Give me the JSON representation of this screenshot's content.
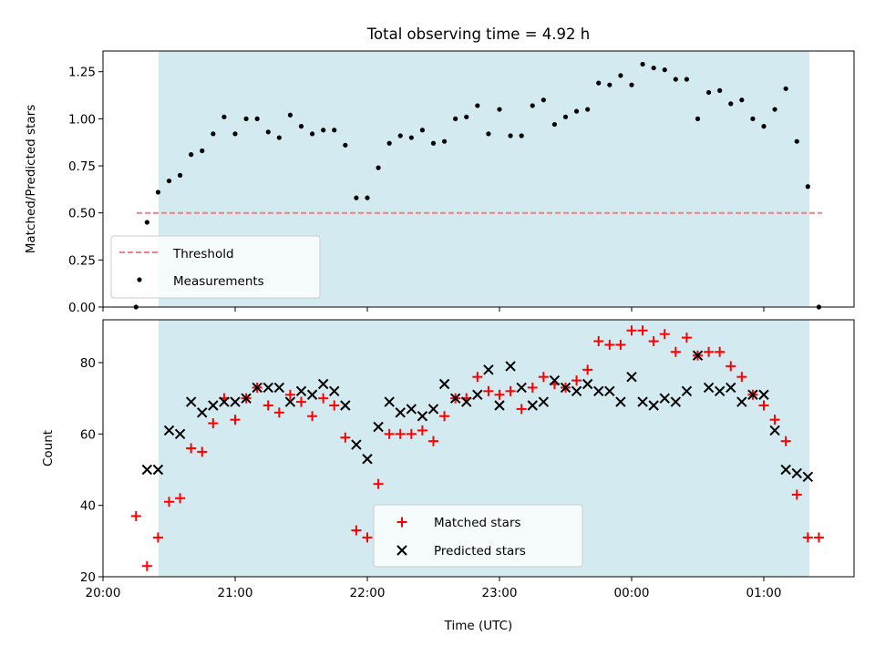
{
  "title": "Total observing time = 4.92 h",
  "colors": {
    "observing_span": "#d3eaf1",
    "threshold": "#f28080",
    "measurements": "#000000",
    "matched": "#ff0000",
    "predicted": "#000000"
  },
  "chart_data": [
    {
      "type": "scatter",
      "ylabel": "Matched/Predicted stars",
      "ylim": [
        0,
        1.36
      ],
      "yticks": [
        "0.00",
        "0.25",
        "0.50",
        "0.75",
        "1.00",
        "1.25"
      ],
      "threshold": 0.5,
      "legend": {
        "placement": "lower-left",
        "entries": [
          "Threshold",
          "Measurements"
        ]
      },
      "series": [
        {
          "name": "Measurements",
          "points": [
            [
              "20:15",
              0.0
            ],
            [
              "20:20",
              0.45
            ],
            [
              "20:25",
              0.61
            ],
            [
              "20:30",
              0.67
            ],
            [
              "20:35",
              0.7
            ],
            [
              "20:40",
              0.81
            ],
            [
              "20:45",
              0.83
            ],
            [
              "20:50",
              0.92
            ],
            [
              "20:55",
              1.01
            ],
            [
              "21:00",
              0.92
            ],
            [
              "21:05",
              1.0
            ],
            [
              "21:10",
              1.0
            ],
            [
              "21:15",
              0.93
            ],
            [
              "21:20",
              0.9
            ],
            [
              "21:25",
              1.02
            ],
            [
              "21:30",
              0.96
            ],
            [
              "21:35",
              0.92
            ],
            [
              "21:40",
              0.94
            ],
            [
              "21:45",
              0.94
            ],
            [
              "21:50",
              0.86
            ],
            [
              "21:55",
              0.58
            ],
            [
              "22:00",
              0.58
            ],
            [
              "22:05",
              0.74
            ],
            [
              "22:10",
              0.87
            ],
            [
              "22:15",
              0.91
            ],
            [
              "22:20",
              0.9
            ],
            [
              "22:25",
              0.94
            ],
            [
              "22:30",
              0.87
            ],
            [
              "22:35",
              0.88
            ],
            [
              "22:40",
              1.0
            ],
            [
              "22:45",
              1.01
            ],
            [
              "22:50",
              1.07
            ],
            [
              "22:55",
              0.92
            ],
            [
              "23:00",
              1.05
            ],
            [
              "23:05",
              0.91
            ],
            [
              "23:10",
              0.91
            ],
            [
              "23:15",
              1.07
            ],
            [
              "23:20",
              1.1
            ],
            [
              "23:25",
              0.97
            ],
            [
              "23:30",
              1.01
            ],
            [
              "23:35",
              1.04
            ],
            [
              "23:40",
              1.05
            ],
            [
              "23:45",
              1.19
            ],
            [
              "23:50",
              1.18
            ],
            [
              "23:55",
              1.23
            ],
            [
              "00:00",
              1.18
            ],
            [
              "00:05",
              1.29
            ],
            [
              "00:10",
              1.27
            ],
            [
              "00:15",
              1.26
            ],
            [
              "00:20",
              1.21
            ],
            [
              "00:25",
              1.21
            ],
            [
              "00:30",
              1.0
            ],
            [
              "00:35",
              1.14
            ],
            [
              "00:40",
              1.15
            ],
            [
              "00:45",
              1.08
            ],
            [
              "00:50",
              1.1
            ],
            [
              "00:55",
              1.0
            ],
            [
              "01:00",
              0.96
            ],
            [
              "01:05",
              1.05
            ],
            [
              "01:10",
              1.16
            ],
            [
              "01:15",
              0.88
            ],
            [
              "01:20",
              0.64
            ],
            [
              "01:25",
              0.0
            ]
          ]
        }
      ]
    },
    {
      "type": "scatter",
      "ylabel": "Count",
      "xlabel": "Time (UTC)",
      "ylim": [
        20,
        92
      ],
      "yticks": [
        "20",
        "40",
        "60",
        "80"
      ],
      "xticks": [
        "20:00",
        "21:00",
        "22:00",
        "23:00",
        "00:00",
        "01:00"
      ],
      "legend": {
        "placement": "lower-center",
        "entries": [
          "Matched stars",
          "Predicted stars"
        ]
      },
      "series": [
        {
          "name": "Matched stars",
          "points": [
            [
              "20:15",
              37
            ],
            [
              "20:20",
              23
            ],
            [
              "20:25",
              31
            ],
            [
              "20:30",
              41
            ],
            [
              "20:35",
              42
            ],
            [
              "20:40",
              56
            ],
            [
              "20:45",
              55
            ],
            [
              "20:50",
              63
            ],
            [
              "20:55",
              70
            ],
            [
              "21:00",
              64
            ],
            [
              "21:05",
              70
            ],
            [
              "21:10",
              73
            ],
            [
              "21:15",
              68
            ],
            [
              "21:20",
              66
            ],
            [
              "21:25",
              71
            ],
            [
              "21:30",
              69
            ],
            [
              "21:35",
              65
            ],
            [
              "21:40",
              70
            ],
            [
              "21:45",
              68
            ],
            [
              "21:50",
              59
            ],
            [
              "21:55",
              33
            ],
            [
              "22:00",
              31
            ],
            [
              "22:05",
              46
            ],
            [
              "22:10",
              60
            ],
            [
              "22:15",
              60
            ],
            [
              "22:20",
              60
            ],
            [
              "22:25",
              61
            ],
            [
              "22:30",
              58
            ],
            [
              "22:35",
              65
            ],
            [
              "22:40",
              70
            ],
            [
              "22:45",
              70
            ],
            [
              "22:50",
              76
            ],
            [
              "22:55",
              72
            ],
            [
              "23:00",
              71
            ],
            [
              "23:05",
              72
            ],
            [
              "23:10",
              67
            ],
            [
              "23:15",
              73
            ],
            [
              "23:20",
              76
            ],
            [
              "23:25",
              74
            ],
            [
              "23:30",
              73
            ],
            [
              "23:35",
              75
            ],
            [
              "23:40",
              78
            ],
            [
              "23:45",
              86
            ],
            [
              "23:50",
              85
            ],
            [
              "23:55",
              85
            ],
            [
              "00:00",
              89
            ],
            [
              "00:05",
              89
            ],
            [
              "00:10",
              86
            ],
            [
              "00:15",
              88
            ],
            [
              "00:20",
              83
            ],
            [
              "00:25",
              87
            ],
            [
              "00:30",
              82
            ],
            [
              "00:35",
              83
            ],
            [
              "00:40",
              83
            ],
            [
              "00:45",
              79
            ],
            [
              "00:50",
              76
            ],
            [
              "00:55",
              71
            ],
            [
              "01:00",
              68
            ],
            [
              "01:05",
              64
            ],
            [
              "01:10",
              58
            ],
            [
              "01:15",
              43
            ],
            [
              "01:20",
              31
            ],
            [
              "01:25",
              31
            ]
          ]
        },
        {
          "name": "Predicted stars",
          "points": [
            [
              "20:20",
              50
            ],
            [
              "20:25",
              50
            ],
            [
              "20:30",
              61
            ],
            [
              "20:35",
              60
            ],
            [
              "20:40",
              69
            ],
            [
              "20:45",
              66
            ],
            [
              "20:50",
              68
            ],
            [
              "20:55",
              69
            ],
            [
              "21:00",
              69
            ],
            [
              "21:05",
              70
            ],
            [
              "21:10",
              73
            ],
            [
              "21:15",
              73
            ],
            [
              "21:20",
              73
            ],
            [
              "21:25",
              69
            ],
            [
              "21:30",
              72
            ],
            [
              "21:35",
              71
            ],
            [
              "21:40",
              74
            ],
            [
              "21:45",
              72
            ],
            [
              "21:50",
              68
            ],
            [
              "21:55",
              57
            ],
            [
              "22:00",
              53
            ],
            [
              "22:05",
              62
            ],
            [
              "22:10",
              69
            ],
            [
              "22:15",
              66
            ],
            [
              "22:20",
              67
            ],
            [
              "22:25",
              65
            ],
            [
              "22:30",
              67
            ],
            [
              "22:35",
              74
            ],
            [
              "22:40",
              70
            ],
            [
              "22:45",
              69
            ],
            [
              "22:50",
              71
            ],
            [
              "22:55",
              78
            ],
            [
              "23:00",
              68
            ],
            [
              "23:05",
              79
            ],
            [
              "23:10",
              73
            ],
            [
              "23:15",
              68
            ],
            [
              "23:20",
              69
            ],
            [
              "23:25",
              75
            ],
            [
              "23:30",
              73
            ],
            [
              "23:35",
              72
            ],
            [
              "23:40",
              74
            ],
            [
              "23:45",
              72
            ],
            [
              "23:50",
              72
            ],
            [
              "23:55",
              69
            ],
            [
              "00:00",
              76
            ],
            [
              "00:05",
              69
            ],
            [
              "00:10",
              68
            ],
            [
              "00:15",
              70
            ],
            [
              "00:20",
              69
            ],
            [
              "00:25",
              72
            ],
            [
              "00:30",
              82
            ],
            [
              "00:35",
              73
            ],
            [
              "00:40",
              72
            ],
            [
              "00:45",
              73
            ],
            [
              "00:50",
              69
            ],
            [
              "00:55",
              71
            ],
            [
              "01:00",
              71
            ],
            [
              "01:05",
              61
            ],
            [
              "01:10",
              50
            ],
            [
              "01:15",
              49
            ],
            [
              "01:20",
              48
            ]
          ]
        }
      ]
    }
  ]
}
